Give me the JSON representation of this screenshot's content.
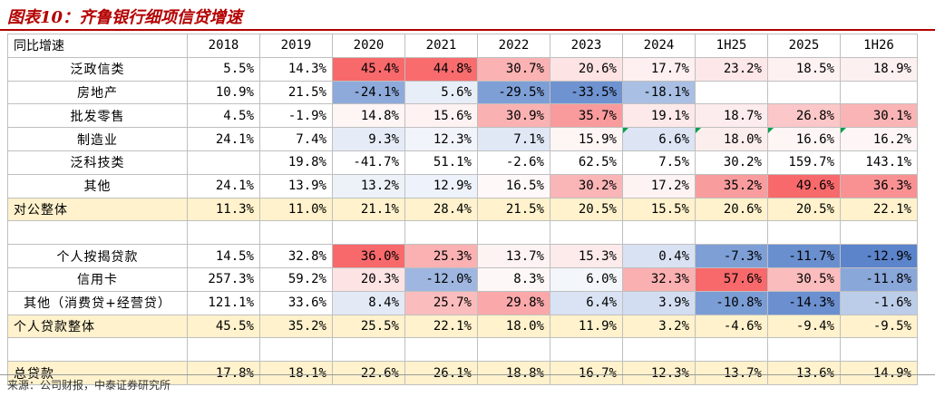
{
  "title": "图表10：齐鲁银行细项信贷增速",
  "source": "来源：公司财报，中泰证券研究所",
  "table": {
    "corner_label": "同比增速",
    "columns": [
      "2018",
      "2019",
      "2020",
      "2021",
      "2022",
      "2023",
      "2024",
      "1H25",
      "2025",
      "1H26"
    ],
    "rows": [
      {
        "label": "泛政信类",
        "align": "center",
        "values": [
          "5.5%",
          "14.3%",
          "45.4%",
          "44.8%",
          "30.7%",
          "20.6%",
          "17.7%",
          "23.2%",
          "18.5%",
          "18.9%"
        ],
        "colors": [
          "",
          "",
          "#f8696b",
          "#f86c6e",
          "#fab2b3",
          "#fde3e4",
          "#fef0f0",
          "#fde7e8",
          "#fdf1f1",
          "#fdf0f0"
        ]
      },
      {
        "label": "房地产",
        "align": "center",
        "values": [
          "10.9%",
          "21.5%",
          "-24.1%",
          "5.6%",
          "-29.5%",
          "-33.5%",
          "-18.1%",
          "",
          "",
          ""
        ],
        "colors": [
          "",
          "",
          "#8eaadb",
          "#e8eef8",
          "#7e9fd6",
          "#6f93d1",
          "#a9bfe4",
          "",
          "",
          ""
        ]
      },
      {
        "label": "批发零售",
        "align": "center",
        "values": [
          "4.5%",
          "-1.9%",
          "14.8%",
          "15.6%",
          "30.9%",
          "35.7%",
          "19.1%",
          "18.7%",
          "26.8%",
          "30.1%"
        ],
        "colors": [
          "",
          "",
          "#fef5f5",
          "#fef2f2",
          "#fab1b2",
          "#f99a9c",
          "#fde9e9",
          "#fdeced",
          "#fbc7c8",
          "#fab4b5"
        ]
      },
      {
        "label": "制造业",
        "align": "center",
        "values": [
          "24.1%",
          "7.4%",
          "9.3%",
          "12.3%",
          "7.1%",
          "15.9%",
          "6.6%",
          "18.0%",
          "16.6%",
          "16.2%"
        ],
        "colors": [
          "",
          "",
          "#e6ecf7",
          "#f1f4fa",
          "#e0e8f5",
          "#fef5f5",
          "#dde5f4",
          "#fdeeee",
          "#fef5f5",
          "#fef6f6"
        ],
        "markers": [
          6,
          7,
          8,
          9
        ]
      },
      {
        "label": "泛科技类",
        "align": "center",
        "values": [
          "",
          "19.8%",
          "-41.7%",
          "51.1%",
          "-2.6%",
          "62.5%",
          "7.5%",
          "30.2%",
          "159.7%",
          "143.1%"
        ],
        "colors": [
          "",
          "",
          "",
          "",
          "",
          "",
          "",
          "",
          "",
          ""
        ]
      },
      {
        "label": "其他",
        "align": "center",
        "values": [
          "24.1%",
          "13.9%",
          "13.2%",
          "12.9%",
          "16.5%",
          "30.2%",
          "17.2%",
          "35.2%",
          "49.6%",
          "36.3%"
        ],
        "colors": [
          "",
          "",
          "#edf2f9",
          "#eef2fa",
          "#fef8f8",
          "#fab5b6",
          "#fdf3f3",
          "#f99c9e",
          "#f8696b",
          "#f99193"
        ]
      },
      {
        "label": "对公整体",
        "align": "left",
        "type": "total",
        "values": [
          "11.3%",
          "11.0%",
          "21.1%",
          "28.4%",
          "21.5%",
          "20.5%",
          "15.5%",
          "20.6%",
          "20.5%",
          "22.1%"
        ]
      },
      {
        "label": "",
        "type": "blank",
        "values": [
          "",
          "",
          "",
          "",
          "",
          "",
          "",
          "",
          "",
          ""
        ]
      },
      {
        "label": "个人按揭贷款",
        "align": "center",
        "values": [
          "14.5%",
          "32.8%",
          "36.0%",
          "25.3%",
          "13.7%",
          "15.3%",
          "0.4%",
          "-7.3%",
          "-11.7%",
          "-12.9%"
        ],
        "colors": [
          "",
          "",
          "#f8696b",
          "#fbb1b2",
          "#fef3f3",
          "#fdeaea",
          "#d9e2f3",
          "#7e9fd6",
          "#6a8fcf",
          "#5b84cb"
        ]
      },
      {
        "label": "信用卡",
        "align": "center",
        "values": [
          "257.3%",
          "59.2%",
          "20.3%",
          "-12.0%",
          "8.3%",
          "6.0%",
          "32.3%",
          "57.6%",
          "30.5%",
          "-11.8%"
        ],
        "colors": [
          "",
          "",
          "#fde3e4",
          "#9fb7e0",
          "#fef7f7",
          "#f3f6fb",
          "#fab0b1",
          "#f8696b",
          "#fbbcbd",
          "#8aa7da"
        ]
      },
      {
        "label": "其他（消费贷+经营贷）",
        "align": "center",
        "values": [
          "121.1%",
          "33.6%",
          "8.4%",
          "25.7%",
          "29.8%",
          "6.4%",
          "3.9%",
          "-10.8%",
          "-14.3%",
          "-1.6%"
        ],
        "colors": [
          "",
          "",
          "#e3eaf6",
          "#fbbcbd",
          "#faa8aa",
          "#dae3f3",
          "#d3ddf1",
          "#7b9dd5",
          "#6b8fcf",
          "#bccde9"
        ]
      },
      {
        "label": "个人贷款整体",
        "align": "left",
        "type": "total",
        "values": [
          "45.5%",
          "35.2%",
          "25.5%",
          "22.1%",
          "18.0%",
          "11.9%",
          "3.2%",
          "-4.6%",
          "-9.4%",
          "-9.5%"
        ]
      },
      {
        "label": "",
        "type": "blank",
        "values": [
          "",
          "",
          "",
          "",
          "",
          "",
          "",
          "",
          "",
          ""
        ]
      },
      {
        "label": "总贷款",
        "align": "left",
        "type": "total",
        "values": [
          "17.8%",
          "18.1%",
          "22.6%",
          "26.1%",
          "18.8%",
          "16.7%",
          "12.3%",
          "13.7%",
          "13.6%",
          "14.9%"
        ]
      }
    ]
  }
}
